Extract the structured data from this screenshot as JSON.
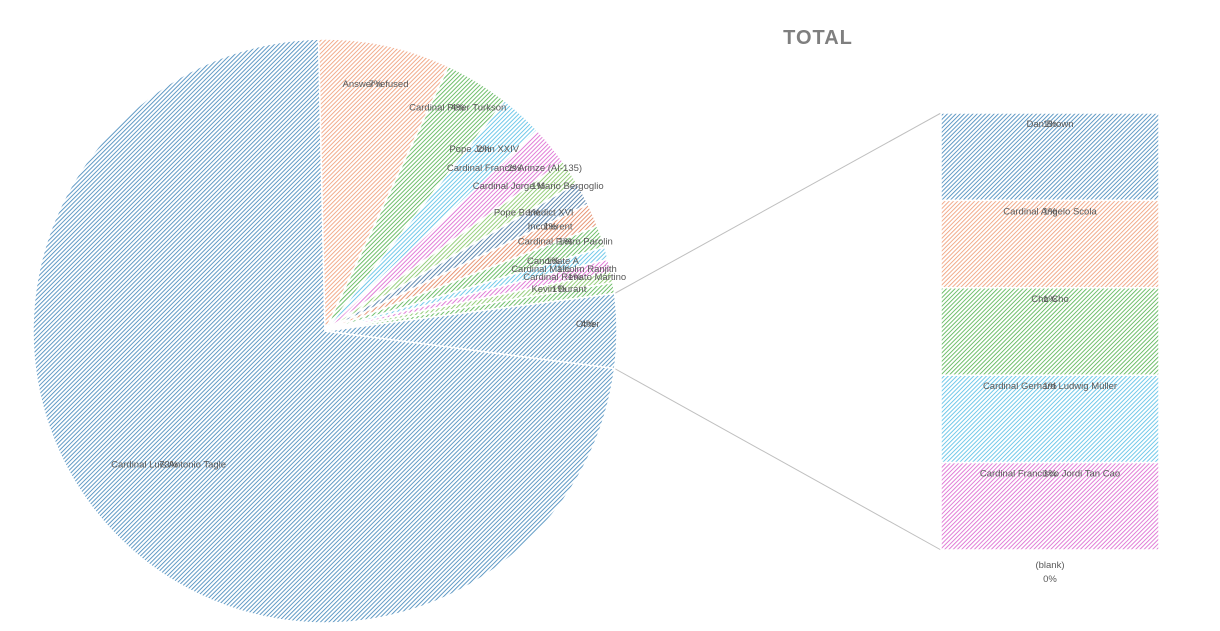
{
  "chart_data": {
    "type": "pie-of-bar",
    "title": "TOTAL",
    "colors": [
      "#4f8fbf",
      "#f0a27f",
      "#5fb85a",
      "#62c3e8",
      "#de6fd3",
      "#8bc96e",
      "#4e7ca8",
      "#e48a66"
    ],
    "slices": [
      {
        "label": "Cardinal Luis Antonio Tagle",
        "percent": "73%",
        "value": 72.6,
        "color": "#4f8fbf"
      },
      {
        "label": "Answer refused",
        "percent": "7%",
        "value": 7.3,
        "color": "#f0a27f"
      },
      {
        "label": "Cardinal Peter Turkson",
        "percent": "4%",
        "value": 3.6,
        "color": "#5fb85a"
      },
      {
        "label": "Pope John XXIV",
        "percent": "2%",
        "value": 2.4,
        "color": "#62c3e8"
      },
      {
        "label": "Cardinal Francis Arinze (AI-135)",
        "percent": "2%",
        "value": 2.2,
        "color": "#de6fd3"
      },
      {
        "label": "Cardinal Jorge Mario Bergoglio",
        "percent": "1%",
        "value": 1.4,
        "color": "#8bc96e"
      },
      {
        "label": "Pope Benedict XVI",
        "percent": "1%",
        "value": 1.3,
        "color": "#4e7ca8"
      },
      {
        "label": "Incoherent",
        "percent": "1%",
        "value": 1.3,
        "color": "#e48a66"
      },
      {
        "label": "Cardinal Pietro Parolin",
        "percent": "1%",
        "value": 1.2,
        "color": "#5fb85a"
      },
      {
        "label": "Candidate A",
        "percent": "1%",
        "value": 0.7,
        "color": "#62c3e8"
      },
      {
        "label": "Cardinal Malcolm Ranjith",
        "percent": "1%",
        "value": 0.7,
        "color": "#de6fd3"
      },
      {
        "label": "Cardinal Renato Martino",
        "percent": "1%",
        "value": 0.6,
        "color": "#8bc96e"
      },
      {
        "label": "Kevin Durant",
        "percent": "1%",
        "value": 0.6,
        "color": "#5fb85a"
      },
      {
        "label": "Other",
        "percent": "4%",
        "value": 4.1,
        "color": "#4f8fbf"
      }
    ],
    "bar_of_other": [
      {
        "label": "Dan Brown",
        "percent": "1%",
        "value": 1,
        "color": "#4f8fbf"
      },
      {
        "label": "Cardinal Angelo Scola",
        "percent": "1%",
        "value": 1,
        "color": "#f0a27f"
      },
      {
        "label": "Cho Cho",
        "percent": "1%",
        "value": 1,
        "color": "#5fb85a"
      },
      {
        "label": "Cardinal Gerhard Ludwig Müller",
        "percent": "1%",
        "value": 1,
        "color": "#62c3e8"
      },
      {
        "label": "Cardinal Francisco Jordi Tan Cao",
        "percent": "1%",
        "value": 1,
        "color": "#de6fd3"
      },
      {
        "label": "(blank)",
        "percent": "0%",
        "value": 0,
        "color": "#9a9a9a"
      }
    ]
  }
}
